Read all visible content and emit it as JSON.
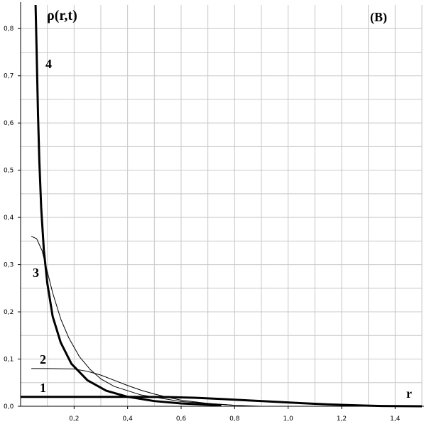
{
  "chart_data": {
    "type": "line",
    "ylabel": "ρ(r,t)",
    "xlabel": "r",
    "annotation": "(B)",
    "xlim": [
      0,
      1.5
    ],
    "ylim": [
      0,
      0.85
    ],
    "xticks": [
      {
        "value": 0.2,
        "label": "0,2"
      },
      {
        "value": 0.4,
        "label": "0,4"
      },
      {
        "value": 0.6,
        "label": "0,6"
      },
      {
        "value": 0.8,
        "label": "0,8"
      },
      {
        "value": 1.0,
        "label": "1,0"
      },
      {
        "value": 1.2,
        "label": "1,2"
      },
      {
        "value": 1.4,
        "label": "1,4"
      }
    ],
    "yticks": [
      {
        "value": 0,
        "label": "0,0"
      },
      {
        "value": 0.1,
        "label": "0,1"
      },
      {
        "value": 0.2,
        "label": "0,2"
      },
      {
        "value": 0.3,
        "label": "0,3"
      },
      {
        "value": 0.4,
        "label": "0,4"
      },
      {
        "value": 0.5,
        "label": "0,5"
      },
      {
        "value": 0.6,
        "label": "0,6"
      },
      {
        "value": 0.7,
        "label": "0,7"
      },
      {
        "value": 0.8,
        "label": "0,8"
      }
    ],
    "minor_xticks": [
      0.1,
      0.3,
      0.5,
      0.7,
      0.9,
      1.1,
      1.3,
      1.5
    ],
    "minor_yticks": [
      0.05,
      0.15,
      0.25,
      0.35,
      0.45,
      0.55,
      0.65,
      0.75
    ],
    "grid": true,
    "series": [
      {
        "name": "1",
        "color": "#000000",
        "width": 3,
        "x": [
          0,
          0.2,
          0.4,
          0.55,
          0.65,
          0.75,
          0.85,
          0.95,
          1.05,
          1.15,
          1.25,
          1.35,
          1.5
        ],
        "values": [
          0.02,
          0.02,
          0.02,
          0.0195,
          0.018,
          0.0155,
          0.0125,
          0.0095,
          0.0065,
          0.004,
          0.002,
          0.0005,
          0
        ]
      },
      {
        "name": "2",
        "color": "#000000",
        "width": 1,
        "x": [
          0.04,
          0.1,
          0.2,
          0.25,
          0.3,
          0.35,
          0.4,
          0.45,
          0.5,
          0.55,
          0.6,
          0.7,
          0.8,
          0.9
        ],
        "values": [
          0.08,
          0.08,
          0.079,
          0.074,
          0.066,
          0.055,
          0.044,
          0.034,
          0.026,
          0.019,
          0.013,
          0.006,
          0.002,
          0
        ]
      },
      {
        "name": "3",
        "color": "#000000",
        "width": 1,
        "x": [
          0.04,
          0.06,
          0.08,
          0.1,
          0.12,
          0.15,
          0.18,
          0.22,
          0.26,
          0.3,
          0.35,
          0.45,
          0.6,
          0.8
        ],
        "values": [
          0.36,
          0.355,
          0.33,
          0.285,
          0.24,
          0.185,
          0.145,
          0.105,
          0.078,
          0.058,
          0.042,
          0.024,
          0.01,
          0.002
        ]
      },
      {
        "name": "4",
        "color": "#000000",
        "width": 3,
        "x": [
          0.056,
          0.06,
          0.065,
          0.07,
          0.077,
          0.087,
          0.1,
          0.12,
          0.15,
          0.19,
          0.25,
          0.32,
          0.4,
          0.5,
          0.6,
          0.75
        ],
        "values": [
          0.85,
          0.75,
          0.62,
          0.52,
          0.42,
          0.33,
          0.26,
          0.19,
          0.135,
          0.09,
          0.055,
          0.033,
          0.02,
          0.011,
          0.006,
          0.002
        ]
      }
    ]
  }
}
